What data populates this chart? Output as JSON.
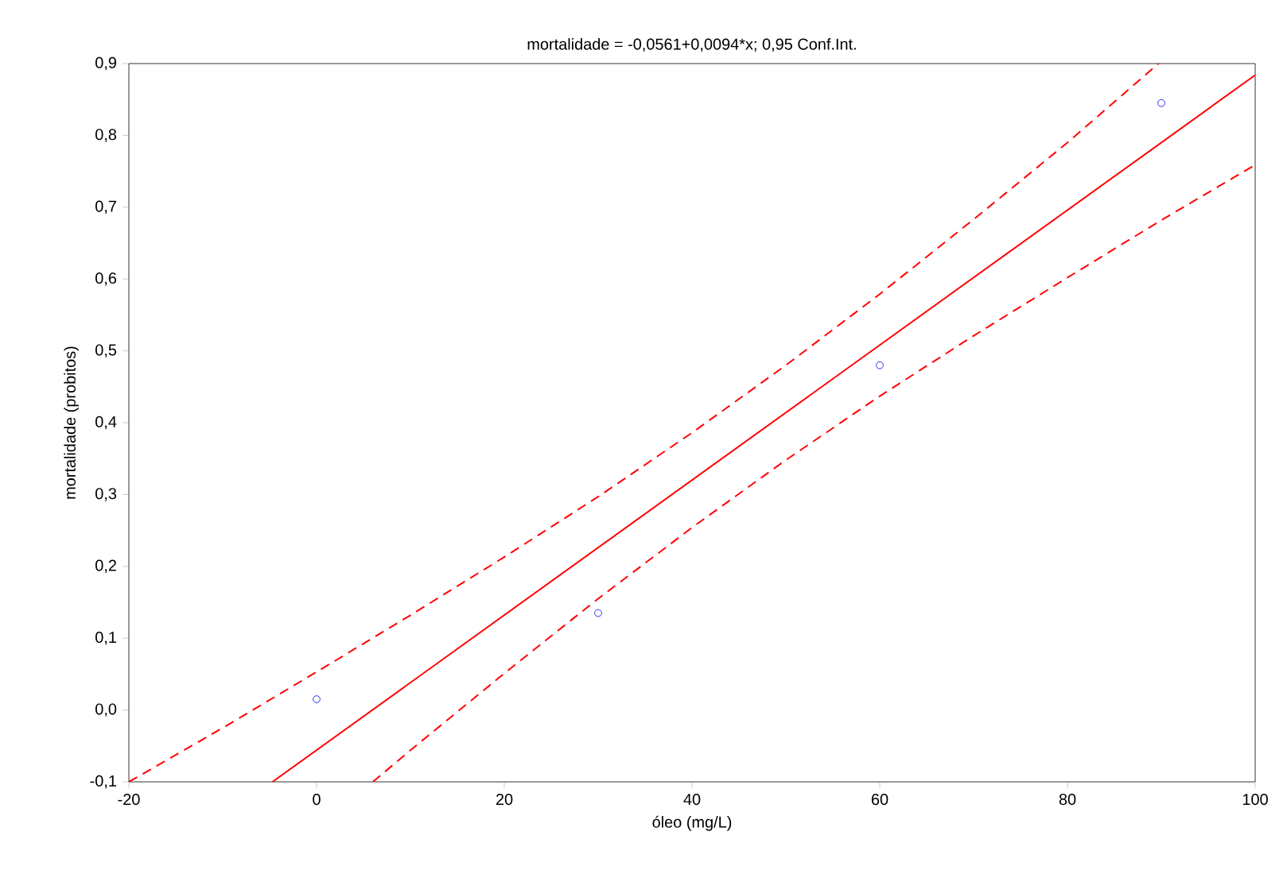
{
  "chart_data": {
    "type": "scatter",
    "title": "mortalidade = -0,0561+0,0094*x; 0,95 Conf.Int.",
    "xlabel": "óleo (mg/L)",
    "ylabel": "mortalidade (probitos)",
    "xlim": [
      -20,
      100
    ],
    "ylim": [
      -0.1,
      0.9
    ],
    "xticks": [
      -20,
      0,
      20,
      40,
      60,
      80,
      100
    ],
    "yticks": [
      {
        "value": -0.1,
        "label": "-0,1"
      },
      {
        "value": 0,
        "label": "0,0"
      },
      {
        "value": 0.1,
        "label": "0,1"
      },
      {
        "value": 0.2,
        "label": "0,2"
      },
      {
        "value": 0.3,
        "label": "0,3"
      },
      {
        "value": 0.4,
        "label": "0,4"
      },
      {
        "value": 0.5,
        "label": "0,5"
      },
      {
        "value": 0.6,
        "label": "0,6"
      },
      {
        "value": 0.7,
        "label": "0,7"
      },
      {
        "value": 0.8,
        "label": "0,8"
      },
      {
        "value": 0.9,
        "label": "0,9"
      }
    ],
    "series": [
      {
        "color": "#0000ff",
        "marker": "circle",
        "x": [
          0,
          30,
          60,
          90
        ],
        "values": [
          0.015,
          0.135,
          0.48,
          0.845
        ]
      },
      {
        "type": "line",
        "color": "#ff0000",
        "marker": "none",
        "line_style": "solid",
        "x": [
          -4.7,
          100
        ],
        "values": [
          -0.1,
          0.884
        ]
      },
      {
        "type": "line",
        "color": "#ff0000",
        "marker": "none",
        "line_style": "dashed",
        "x": [
          -20,
          -10,
          0,
          10,
          20,
          30,
          40,
          50,
          60,
          70,
          80,
          89.7
        ],
        "values": [
          -0.1,
          -0.025,
          0.053,
          0.132,
          0.213,
          0.297,
          0.386,
          0.48,
          0.579,
          0.683,
          0.79,
          0.9
        ]
      },
      {
        "type": "line",
        "color": "#ff0000",
        "marker": "none",
        "line_style": "dashed",
        "x": [
          6,
          10,
          20,
          30,
          40,
          50,
          60,
          70,
          80,
          90,
          100
        ],
        "values": [
          -0.1,
          -0.056,
          0.051,
          0.155,
          0.254,
          0.348,
          0.437,
          0.521,
          0.602,
          0.682,
          0.759
        ]
      }
    ]
  }
}
